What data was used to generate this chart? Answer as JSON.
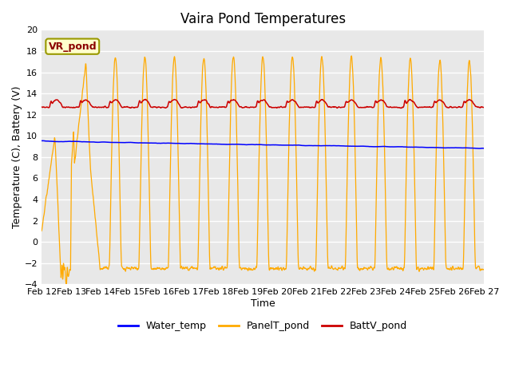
{
  "title": "Vaira Pond Temperatures",
  "xlabel": "Time",
  "ylabel": "Temperature (C), Battery (V)",
  "ylim": [
    -4,
    20
  ],
  "yticks": [
    -4,
    -2,
    0,
    2,
    4,
    6,
    8,
    10,
    12,
    14,
    16,
    18,
    20
  ],
  "xtick_labels": [
    "Feb 12",
    "Feb 13",
    "Feb 14",
    "Feb 15",
    "Feb 16",
    "Feb 17",
    "Feb 18",
    "Feb 19",
    "Feb 20",
    "Feb 21",
    "Feb 22",
    "Feb 23",
    "Feb 24",
    "Feb 25",
    "Feb 26",
    "Feb 27"
  ],
  "water_color": "#0000ff",
  "panel_color": "#ffaa00",
  "batt_color": "#cc0000",
  "fig_facecolor": "#ffffff",
  "plot_facecolor": "#e8e8e8",
  "grid_color": "#ffffff",
  "legend_label_water": "Water_temp",
  "legend_label_panel": "PanelT_pond",
  "legend_label_batt": "BattV_pond",
  "inset_label": "VR_pond",
  "title_fontsize": 12,
  "axis_fontsize": 9,
  "tick_fontsize": 8,
  "legend_fontsize": 9
}
